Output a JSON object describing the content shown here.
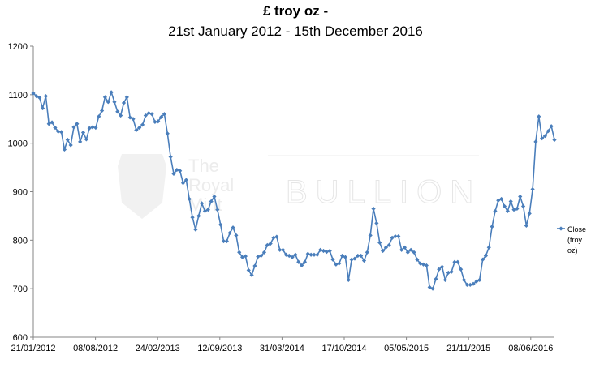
{
  "chart_data": {
    "type": "line",
    "title": "£ troy oz -",
    "subtitle": "21st January 2012 - 15th December 2016",
    "xlabel": "",
    "ylabel": "",
    "ylim": [
      600,
      1200
    ],
    "yticks": [
      600,
      700,
      800,
      900,
      1000,
      1100,
      1200
    ],
    "xtick_labels": [
      "21/01/2012",
      "08/08/2012",
      "24/02/2013",
      "12/09/2013",
      "31/03/2014",
      "17/10/2014",
      "05/05/2015",
      "21/11/2015",
      "08/06/2016"
    ],
    "grid": {
      "horizontal": false,
      "vertical": false
    },
    "legend": {
      "position": "right",
      "entries": [
        "Close (troy oz)"
      ]
    },
    "series": [
      {
        "name": "Close (troy oz)",
        "color": "#4A7EBB",
        "values": [
          1103,
          1097,
          1094,
          1072,
          1097,
          1040,
          1043,
          1032,
          1024,
          1023,
          987,
          1007,
          996,
          1033,
          1040,
          1003,
          1022,
          1008,
          1031,
          1033,
          1032,
          1055,
          1067,
          1095,
          1085,
          1105,
          1085,
          1065,
          1057,
          1083,
          1095,
          1053,
          1050,
          1027,
          1032,
          1038,
          1057,
          1062,
          1060,
          1044,
          1045,
          1054,
          1060,
          1020,
          972,
          937,
          945,
          943,
          918,
          924,
          885,
          847,
          822,
          850,
          876,
          860,
          863,
          880,
          890,
          863,
          832,
          798,
          798,
          815,
          826,
          810,
          775,
          765,
          767,
          738,
          728,
          747,
          766,
          768,
          775,
          790,
          793,
          805,
          807,
          780,
          780,
          770,
          768,
          765,
          770,
          755,
          748,
          755,
          772,
          770,
          770,
          770,
          780,
          778,
          776,
          778,
          760,
          750,
          752,
          768,
          765,
          718,
          760,
          762,
          768,
          768,
          758,
          775,
          810,
          865,
          835,
          795,
          778,
          785,
          790,
          805,
          808,
          808,
          780,
          785,
          775,
          780,
          775,
          760,
          752,
          750,
          748,
          703,
          700,
          720,
          740,
          745,
          718,
          733,
          735,
          755,
          755,
          740,
          718,
          708,
          708,
          710,
          715,
          718,
          760,
          768,
          785,
          828,
          860,
          882,
          885,
          870,
          860,
          880,
          863,
          865,
          890,
          870,
          830,
          855,
          905,
          1003,
          1055,
          1010,
          1015,
          1025,
          1035,
          1007
        ]
      }
    ]
  },
  "watermark": {
    "text_left": "The Royal Mint",
    "text_right": "BULLION"
  }
}
